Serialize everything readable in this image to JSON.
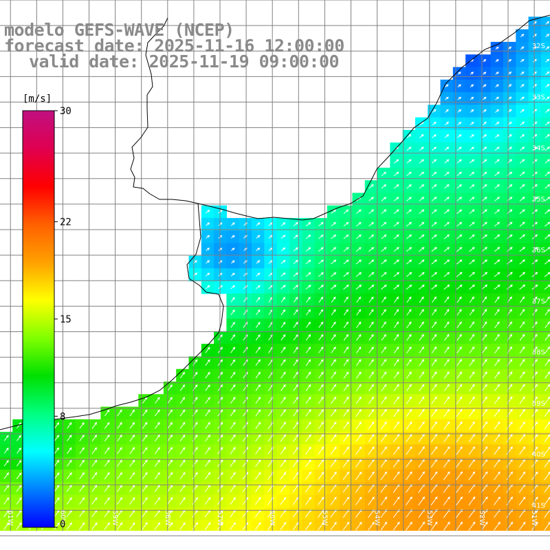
{
  "title": {
    "line1": "modelo GEFS-WAVE (NCEP)",
    "line2": "forecast date: 2025-11-16 12:00:00",
    "line3": "valid date: 2025-11-19 09:00:00"
  },
  "colorbar": {
    "unit": "[m/s]",
    "ticks": [
      {
        "label": "30",
        "value": 30
      },
      {
        "label": "22",
        "value": 22
      },
      {
        "label": "15",
        "value": 15
      },
      {
        "label": "8",
        "value": 8
      },
      {
        "label": "0",
        "value": 0
      }
    ],
    "range": [
      0,
      30
    ],
    "colors": [
      "#0000ff",
      "#0080ff",
      "#00ffff",
      "#00ff80",
      "#00e000",
      "#80ff00",
      "#ffff00",
      "#ffa000",
      "#ff6000",
      "#ff0000",
      "#e00050",
      "#c01080"
    ]
  },
  "map": {
    "lon_range": [
      -61.2,
      -50.7
    ],
    "lat_range": [
      -41.4,
      -31.0
    ],
    "lon_ticks": [
      {
        "label": "61W",
        "value": -61
      },
      {
        "label": "60W",
        "value": -60
      },
      {
        "label": "59W",
        "value": -59
      },
      {
        "label": "58W",
        "value": -58
      },
      {
        "label": "57W",
        "value": -57
      },
      {
        "label": "56W",
        "value": -56
      },
      {
        "label": "55W",
        "value": -55
      },
      {
        "label": "54W",
        "value": -54
      },
      {
        "label": "53W",
        "value": -53
      },
      {
        "label": "52W",
        "value": -52
      },
      {
        "label": "51W",
        "value": -51
      }
    ],
    "lat_ticks": [
      {
        "label": "32S",
        "value": -32
      },
      {
        "label": "33S",
        "value": -33
      },
      {
        "label": "34S",
        "value": -34
      },
      {
        "label": "35S",
        "value": -35
      },
      {
        "label": "36S",
        "value": -36
      },
      {
        "label": "37S",
        "value": -37
      },
      {
        "label": "38S",
        "value": -38
      },
      {
        "label": "39S",
        "value": -39
      },
      {
        "label": "40S",
        "value": -40
      },
      {
        "label": "41S",
        "value": -41
      }
    ],
    "land_color": "#ffffff",
    "grid_color": "#808080",
    "coast_color": "#000000"
  }
}
